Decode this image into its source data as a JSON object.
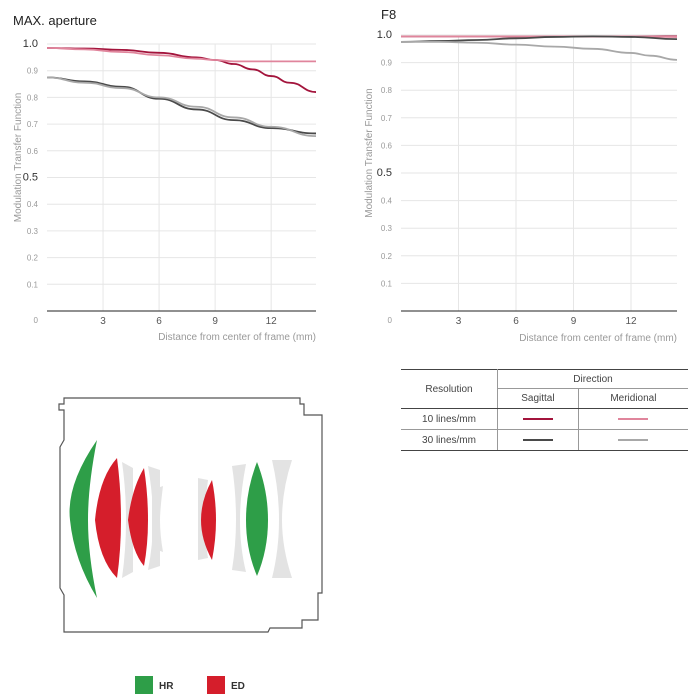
{
  "charts": {
    "left_title": "MAX. aperture",
    "right_title": "F8",
    "ylabel": "Modulation Transfer Function",
    "xlabel": "Distance from center of frame (mm)",
    "y_ticks": [
      "0",
      "0.1",
      "0.2",
      "0.3",
      "0.4",
      "0.5",
      "0.6",
      "0.7",
      "0.8",
      "0.9",
      "1.0"
    ],
    "x_ticks": [
      "0",
      "3",
      "6",
      "9",
      "12"
    ]
  },
  "chart_data": [
    {
      "type": "line",
      "title": "MAX. aperture",
      "xlabel": "Distance from center of frame (mm)",
      "ylabel": "Modulation Transfer Function",
      "xlim": [
        0,
        14.4
      ],
      "ylim": [
        0,
        1.0
      ],
      "grid": true,
      "series": [
        {
          "name": "10 lines/mm Sagittal",
          "color": "#a3143c",
          "x": [
            0,
            2,
            4,
            6,
            8,
            9,
            10,
            11,
            12,
            13,
            14.4
          ],
          "y": [
            0.985,
            0.983,
            0.978,
            0.967,
            0.95,
            0.94,
            0.925,
            0.905,
            0.88,
            0.855,
            0.82
          ]
        },
        {
          "name": "10 lines/mm Meridional",
          "color": "#e0859c",
          "x": [
            0,
            2,
            4,
            6,
            8,
            9,
            10,
            12,
            14.4
          ],
          "y": [
            0.985,
            0.98,
            0.97,
            0.958,
            0.945,
            0.94,
            0.935,
            0.935,
            0.935
          ]
        },
        {
          "name": "30 lines/mm Sagittal",
          "color": "#4a4a4a",
          "x": [
            0,
            2,
            4,
            6,
            8,
            10,
            12,
            14.4
          ],
          "y": [
            0.875,
            0.86,
            0.84,
            0.795,
            0.755,
            0.715,
            0.685,
            0.665
          ]
        },
        {
          "name": "30 lines/mm Meridional",
          "color": "#a8a8a8",
          "x": [
            0,
            2,
            4,
            6,
            8,
            10,
            12,
            14.4
          ],
          "y": [
            0.875,
            0.855,
            0.835,
            0.8,
            0.765,
            0.725,
            0.69,
            0.655
          ]
        }
      ]
    },
    {
      "type": "line",
      "title": "F8",
      "xlabel": "Distance from center of frame (mm)",
      "ylabel": "Modulation Transfer Function",
      "xlim": [
        0,
        14.4
      ],
      "ylim": [
        0,
        1.0
      ],
      "grid": true,
      "series": [
        {
          "name": "10 lines/mm Sagittal",
          "color": "#a3143c",
          "x": [
            0,
            4,
            8,
            12,
            14.4
          ],
          "y": [
            0.995,
            0.995,
            0.995,
            0.995,
            0.995
          ]
        },
        {
          "name": "10 lines/mm Meridional",
          "color": "#e0859c",
          "x": [
            0,
            4,
            8,
            12,
            14.4
          ],
          "y": [
            0.995,
            0.995,
            0.995,
            0.995,
            0.993
          ]
        },
        {
          "name": "30 lines/mm Sagittal",
          "color": "#4a4a4a",
          "x": [
            0,
            2,
            4,
            6,
            8,
            10,
            12,
            14.4
          ],
          "y": [
            0.975,
            0.978,
            0.982,
            0.988,
            0.993,
            0.995,
            0.993,
            0.985
          ]
        },
        {
          "name": "30 lines/mm Meridional",
          "color": "#a8a8a8",
          "x": [
            0,
            2,
            4,
            6,
            8,
            10,
            12,
            13,
            14.4
          ],
          "y": [
            0.975,
            0.975,
            0.972,
            0.965,
            0.958,
            0.95,
            0.935,
            0.925,
            0.91
          ]
        }
      ]
    }
  ],
  "legend_table": {
    "resolution_header": "Resolution",
    "direction_header": "Direction",
    "sagittal": "Sagittal",
    "meridional": "Meridional",
    "rows": [
      {
        "label": "10 lines/mm",
        "sag_color": "#a3143c",
        "mer_color": "#e0859c"
      },
      {
        "label": "30 lines/mm",
        "sag_color": "#4a4a4a",
        "mer_color": "#a8a8a8"
      }
    ]
  },
  "lens_legend": {
    "items": [
      {
        "label": "HR",
        "color": "#2e9e48"
      },
      {
        "label": "ED",
        "color": "#d51e2b"
      }
    ]
  },
  "colors": {
    "hr": "#2e9e48",
    "ed": "#d51e2b",
    "plain_element": "#e3e3e3",
    "grid": "#e6e6e6"
  }
}
